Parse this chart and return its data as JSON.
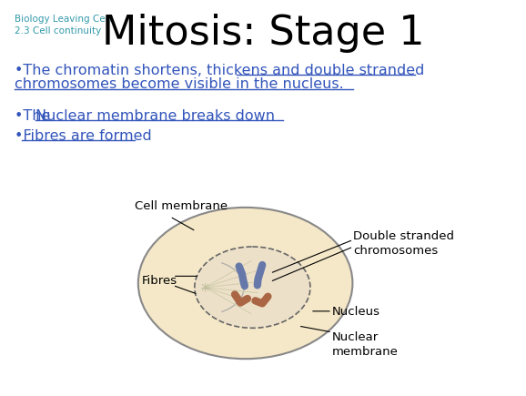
{
  "bg_color": "#ffffff",
  "subtitle_text": "Biology Leaving Cert\n2.3 Cell continuity",
  "subtitle_color": "#3399aa",
  "title_text": "Mitosis: Stage 1",
  "title_color": "#000000",
  "bullet_color": "#3355bb",
  "cell_bg": "#f5e8c8",
  "cell_border": "#888888",
  "nucleus_bg": "#ede0c8",
  "nucleus_border": "#666666",
  "chr_color1": "#6677aa",
  "chr_color2": "#aa6644",
  "label_color": "#000000",
  "fibre_color": "#ccccaa",
  "spindle_border": "#aaaaaa"
}
